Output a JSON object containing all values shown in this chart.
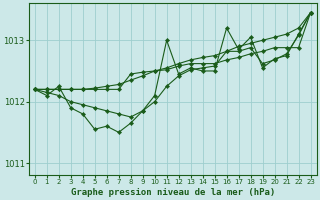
{
  "title": "Graphe pression niveau de la mer (hPa)",
  "bg_color": "#cce8e8",
  "grid_color": "#9ecece",
  "line_color": "#1a5c1a",
  "marker_color": "#1a5c1a",
  "xlim": [
    -0.5,
    23.5
  ],
  "ylim": [
    1010.8,
    1013.6
  ],
  "yticks": [
    1011,
    1012,
    1013
  ],
  "xticks": [
    0,
    1,
    2,
    3,
    4,
    5,
    6,
    7,
    8,
    9,
    10,
    11,
    12,
    13,
    14,
    15,
    16,
    17,
    18,
    19,
    20,
    21,
    22,
    23
  ],
  "series": [
    [
      1012.2,
      1012.1,
      1012.25,
      1011.9,
      1011.8,
      1011.55,
      1011.6,
      1011.5,
      1011.65,
      1011.85,
      1012.1,
      1013.0,
      1012.45,
      1012.55,
      1012.5,
      1012.5,
      1013.2,
      1012.85,
      1013.05,
      1012.55,
      1012.7,
      1012.75,
      1013.1,
      1013.45
    ],
    [
      1012.2,
      1012.2,
      1012.2,
      1012.2,
      1012.2,
      1012.22,
      1012.25,
      1012.28,
      1012.35,
      1012.42,
      1012.5,
      1012.55,
      1012.62,
      1012.68,
      1012.72,
      1012.75,
      1012.82,
      1012.9,
      1012.95,
      1013.0,
      1013.05,
      1013.1,
      1013.2,
      1013.45
    ],
    [
      1012.2,
      1012.15,
      1012.1,
      1012.0,
      1011.95,
      1011.9,
      1011.85,
      1011.8,
      1011.75,
      1011.85,
      1012.0,
      1012.25,
      1012.42,
      1012.52,
      1012.55,
      1012.58,
      1012.82,
      1012.82,
      1012.88,
      1012.62,
      1012.68,
      1012.78,
      1013.08,
      1013.45
    ],
    [
      1012.2,
      1012.2,
      1012.2,
      1012.2,
      1012.2,
      1012.2,
      1012.2,
      1012.2,
      1012.45,
      1012.48,
      1012.5,
      1012.52,
      1012.58,
      1012.62,
      1012.62,
      1012.62,
      1012.68,
      1012.72,
      1012.78,
      1012.82,
      1012.88,
      1012.88,
      1012.88,
      1013.45
    ]
  ]
}
